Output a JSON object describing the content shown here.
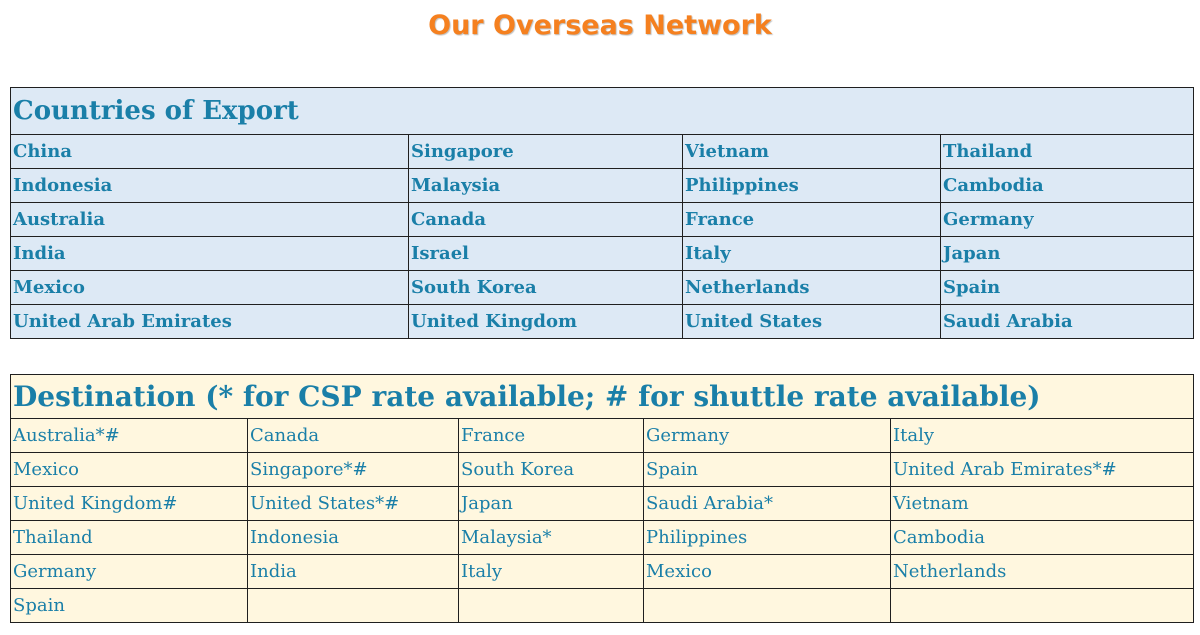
{
  "page": {
    "title": "Our Overseas Network"
  },
  "export": {
    "heading": "Countries of Export",
    "rows": [
      [
        "China",
        "Singapore",
        "Vietnam",
        "Thailand"
      ],
      [
        "Indonesia",
        "Malaysia",
        "Philippines",
        "Cambodia"
      ],
      [
        "Australia",
        "Canada",
        "France",
        "Germany"
      ],
      [
        "India",
        "Israel",
        "Italy",
        "Japan"
      ],
      [
        "Mexico",
        "South Korea",
        "Netherlands",
        "Spain"
      ],
      [
        "United Arab Emirates",
        "United Kingdom",
        "United States",
        "Saudi Arabia"
      ]
    ]
  },
  "destination": {
    "heading": "Destination (* for CSP rate available; # for shuttle rate available)",
    "rows": [
      [
        "Australia*#",
        "Canada",
        "France",
        "Germany",
        "Italy"
      ],
      [
        "Mexico",
        "Singapore*#",
        "South Korea",
        "Spain",
        "United Arab Emirates*#"
      ],
      [
        "United Kingdom#",
        "United States*#",
        "Japan",
        "Saudi Arabia*",
        "Vietnam"
      ],
      [
        "Thailand",
        "Indonesia",
        "Malaysia*",
        "Philippines",
        "Cambodia"
      ],
      [
        "Germany",
        "India",
        "Italy",
        "Mexico",
        "Netherlands"
      ],
      [
        "Spain",
        "",
        "",
        "",
        ""
      ]
    ]
  },
  "colors": {
    "title": "#f5801f",
    "text": "#1a7fa8",
    "export_background": "#dde9f5",
    "destination_background": "#fff7df"
  }
}
